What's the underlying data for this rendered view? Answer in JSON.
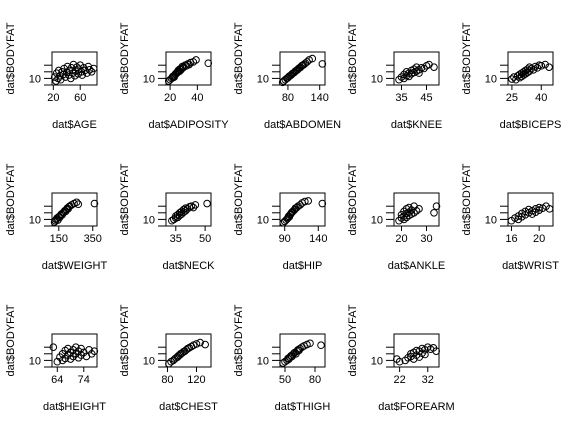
{
  "chart_data": [
    {
      "type": "scatter",
      "xlabel": "dat$AGE",
      "ylabel": "dat$BODYFAT",
      "xticks": [
        20,
        60
      ],
      "xlim": [
        18,
        85
      ],
      "yticks": [
        10
      ],
      "ylim": [
        0,
        50
      ],
      "points": [
        [
          22,
          12
        ],
        [
          24,
          6
        ],
        [
          25,
          18
        ],
        [
          27,
          10
        ],
        [
          28,
          22
        ],
        [
          30,
          14
        ],
        [
          31,
          8
        ],
        [
          33,
          20
        ],
        [
          35,
          16
        ],
        [
          36,
          25
        ],
        [
          38,
          12
        ],
        [
          40,
          19
        ],
        [
          41,
          28
        ],
        [
          43,
          15
        ],
        [
          44,
          22
        ],
        [
          46,
          10
        ],
        [
          47,
          26
        ],
        [
          49,
          18
        ],
        [
          50,
          31
        ],
        [
          52,
          14
        ],
        [
          53,
          21
        ],
        [
          55,
          27
        ],
        [
          57,
          17
        ],
        [
          58,
          24
        ],
        [
          60,
          30
        ],
        [
          62,
          20
        ],
        [
          63,
          15
        ],
        [
          65,
          26
        ],
        [
          67,
          22
        ],
        [
          70,
          18
        ],
        [
          72,
          28
        ],
        [
          74,
          23
        ],
        [
          77,
          20
        ],
        [
          80,
          25
        ]
      ]
    },
    {
      "type": "scatter",
      "xlabel": "dat$ADIPOSITY",
      "ylabel": "dat$BODYFAT",
      "xticks": [
        20,
        40
      ],
      "xlim": [
        17,
        50
      ],
      "yticks": [
        10
      ],
      "ylim": [
        0,
        50
      ],
      "points": [
        [
          19,
          6
        ],
        [
          20,
          8
        ],
        [
          21,
          10
        ],
        [
          22,
          11
        ],
        [
          22,
          13
        ],
        [
          23,
          14
        ],
        [
          23,
          12
        ],
        [
          24,
          16
        ],
        [
          24,
          17
        ],
        [
          25,
          18
        ],
        [
          25,
          19
        ],
        [
          26,
          20
        ],
        [
          26,
          22
        ],
        [
          27,
          21
        ],
        [
          27,
          24
        ],
        [
          28,
          23
        ],
        [
          28,
          25
        ],
        [
          29,
          26
        ],
        [
          29,
          28
        ],
        [
          30,
          27
        ],
        [
          31,
          30
        ],
        [
          32,
          29
        ],
        [
          33,
          32
        ],
        [
          34,
          31
        ],
        [
          35,
          34
        ],
        [
          37,
          35
        ],
        [
          39,
          38
        ],
        [
          48,
          33
        ]
      ]
    },
    {
      "type": "scatter",
      "xlabel": "dat$ABDOMEN",
      "ylabel": "dat$BODYFAT",
      "xticks": [
        80,
        140
      ],
      "xlim": [
        65,
        150
      ],
      "yticks": [
        10
      ],
      "ylim": [
        0,
        50
      ],
      "points": [
        [
          70,
          4
        ],
        [
          72,
          6
        ],
        [
          75,
          8
        ],
        [
          78,
          10
        ],
        [
          80,
          11
        ],
        [
          82,
          13
        ],
        [
          84,
          14
        ],
        [
          86,
          15
        ],
        [
          88,
          17
        ],
        [
          90,
          18
        ],
        [
          92,
          19
        ],
        [
          94,
          21
        ],
        [
          96,
          22
        ],
        [
          98,
          23
        ],
        [
          100,
          25
        ],
        [
          102,
          26
        ],
        [
          104,
          27
        ],
        [
          106,
          29
        ],
        [
          108,
          30
        ],
        [
          110,
          31
        ],
        [
          113,
          33
        ],
        [
          116,
          35
        ],
        [
          120,
          38
        ],
        [
          126,
          40
        ],
        [
          145,
          32
        ]
      ]
    },
    {
      "type": "scatter",
      "xlabel": "dat$KNEE",
      "ylabel": "dat$BODYFAT",
      "xticks": [
        35,
        45
      ],
      "xlim": [
        32,
        50
      ],
      "yticks": [
        10
      ],
      "ylim": [
        0,
        50
      ],
      "points": [
        [
          34,
          8
        ],
        [
          35,
          12
        ],
        [
          36,
          10
        ],
        [
          36,
          16
        ],
        [
          37,
          14
        ],
        [
          37,
          20
        ],
        [
          38,
          18
        ],
        [
          38,
          13
        ],
        [
          39,
          22
        ],
        [
          39,
          17
        ],
        [
          40,
          24
        ],
        [
          40,
          19
        ],
        [
          41,
          21
        ],
        [
          41,
          27
        ],
        [
          42,
          23
        ],
        [
          42,
          18
        ],
        [
          43,
          26
        ],
        [
          44,
          25
        ],
        [
          45,
          29
        ],
        [
          46,
          31
        ],
        [
          48,
          27
        ]
      ]
    },
    {
      "type": "scatter",
      "xlabel": "dat$BICEPS",
      "ylabel": "dat$BODYFAT",
      "xticks": [
        25,
        40
      ],
      "xlim": [
        23,
        46
      ],
      "yticks": [
        10
      ],
      "ylim": [
        0,
        50
      ],
      "points": [
        [
          25,
          9
        ],
        [
          26,
          12
        ],
        [
          27,
          8
        ],
        [
          28,
          14
        ],
        [
          29,
          16
        ],
        [
          29,
          11
        ],
        [
          30,
          18
        ],
        [
          30,
          13
        ],
        [
          31,
          20
        ],
        [
          31,
          15
        ],
        [
          32,
          22
        ],
        [
          32,
          17
        ],
        [
          33,
          24
        ],
        [
          33,
          19
        ],
        [
          34,
          21
        ],
        [
          34,
          27
        ],
        [
          35,
          25
        ],
        [
          36,
          23
        ],
        [
          37,
          28
        ],
        [
          38,
          26
        ],
        [
          39,
          30
        ],
        [
          40,
          29
        ],
        [
          42,
          31
        ],
        [
          44,
          27
        ]
      ]
    },
    {
      "type": "scatter",
      "xlabel": "dat$WEIGHT",
      "ylabel": "dat$BODYFAT",
      "xticks": [
        150,
        350
      ],
      "xlim": [
        110,
        375
      ],
      "yticks": [
        10
      ],
      "ylim": [
        0,
        50
      ],
      "points": [
        [
          125,
          6
        ],
        [
          130,
          8
        ],
        [
          135,
          10
        ],
        [
          140,
          12
        ],
        [
          145,
          9
        ],
        [
          150,
          14
        ],
        [
          155,
          13
        ],
        [
          160,
          16
        ],
        [
          165,
          18
        ],
        [
          170,
          17
        ],
        [
          175,
          20
        ],
        [
          180,
          21
        ],
        [
          185,
          23
        ],
        [
          190,
          22
        ],
        [
          195,
          25
        ],
        [
          200,
          27
        ],
        [
          205,
          26
        ],
        [
          210,
          29
        ],
        [
          215,
          30
        ],
        [
          225,
          32
        ],
        [
          240,
          34
        ],
        [
          255,
          36
        ],
        [
          265,
          33
        ],
        [
          360,
          34
        ]
      ]
    },
    {
      "type": "scatter",
      "xlabel": "dat$NECK",
      "ylabel": "dat$BODYFAT",
      "xticks": [
        35,
        50
      ],
      "xlim": [
        30,
        53
      ],
      "yticks": [
        10
      ],
      "ylim": [
        0,
        50
      ],
      "points": [
        [
          33,
          8
        ],
        [
          34,
          10
        ],
        [
          35,
          12
        ],
        [
          35,
          15
        ],
        [
          36,
          13
        ],
        [
          36,
          17
        ],
        [
          37,
          16
        ],
        [
          37,
          20
        ],
        [
          38,
          18
        ],
        [
          38,
          22
        ],
        [
          39,
          21
        ],
        [
          39,
          25
        ],
        [
          40,
          23
        ],
        [
          40,
          27
        ],
        [
          41,
          26
        ],
        [
          42,
          29
        ],
        [
          43,
          30
        ],
        [
          44,
          28
        ],
        [
          45,
          32
        ],
        [
          51,
          34
        ]
      ]
    },
    {
      "type": "scatter",
      "xlabel": "dat$HIP",
      "ylabel": "dat$BODYFAT",
      "xticks": [
        90,
        140
      ],
      "xlim": [
        83,
        150
      ],
      "yticks": [
        10
      ],
      "ylim": [
        0,
        50
      ],
      "points": [
        [
          88,
          5
        ],
        [
          90,
          7
        ],
        [
          92,
          9
        ],
        [
          94,
          11
        ],
        [
          95,
          13
        ],
        [
          96,
          15
        ],
        [
          97,
          14
        ],
        [
          98,
          17
        ],
        [
          99,
          18
        ],
        [
          100,
          20
        ],
        [
          101,
          21
        ],
        [
          102,
          22
        ],
        [
          104,
          24
        ],
        [
          105,
          25
        ],
        [
          106,
          27
        ],
        [
          108,
          28
        ],
        [
          110,
          30
        ],
        [
          113,
          32
        ],
        [
          116,
          35
        ],
        [
          120,
          37
        ],
        [
          125,
          38
        ],
        [
          146,
          34
        ]
      ]
    },
    {
      "type": "scatter",
      "xlabel": "dat$ANKLE",
      "ylabel": "dat$BODYFAT",
      "xticks": [
        20,
        30
      ],
      "xlim": [
        17,
        35
      ],
      "yticks": [
        10
      ],
      "ylim": [
        0,
        50
      ],
      "points": [
        [
          19,
          8
        ],
        [
          20,
          12
        ],
        [
          20,
          17
        ],
        [
          21,
          10
        ],
        [
          21,
          15
        ],
        [
          21,
          22
        ],
        [
          22,
          13
        ],
        [
          22,
          19
        ],
        [
          22,
          26
        ],
        [
          23,
          16
        ],
        [
          23,
          21
        ],
        [
          23,
          28
        ],
        [
          24,
          18
        ],
        [
          24,
          24
        ],
        [
          25,
          20
        ],
        [
          25,
          30
        ],
        [
          26,
          23
        ],
        [
          27,
          26
        ],
        [
          33,
          20
        ],
        [
          34,
          30
        ]
      ]
    },
    {
      "type": "scatter",
      "xlabel": "dat$WRIST",
      "ylabel": "dat$BODYFAT",
      "xticks": [
        16,
        20
      ],
      "xlim": [
        15.5,
        22
      ],
      "yticks": [
        10
      ],
      "ylim": [
        0,
        50
      ],
      "points": [
        [
          16,
          8
        ],
        [
          16.5,
          12
        ],
        [
          17,
          10
        ],
        [
          17,
          15
        ],
        [
          17.5,
          14
        ],
        [
          17.5,
          19
        ],
        [
          18,
          17
        ],
        [
          18,
          22
        ],
        [
          18.5,
          20
        ],
        [
          18.5,
          25
        ],
        [
          19,
          23
        ],
        [
          19,
          18
        ],
        [
          19.5,
          26
        ],
        [
          19.5,
          21
        ],
        [
          20,
          28
        ],
        [
          20,
          24
        ],
        [
          20.5,
          27
        ],
        [
          21,
          30
        ],
        [
          21.5,
          26
        ]
      ]
    },
    {
      "type": "scatter",
      "xlabel": "dat$HEIGHT",
      "ylabel": "dat$BODYFAT",
      "xticks": [
        64,
        74
      ],
      "xlim": [
        62,
        79
      ],
      "yticks": [
        10
      ],
      "ylim": [
        0,
        50
      ],
      "points": [
        [
          64,
          8
        ],
        [
          65,
          15
        ],
        [
          66,
          20
        ],
        [
          66,
          10
        ],
        [
          67,
          25
        ],
        [
          67,
          13
        ],
        [
          68,
          18
        ],
        [
          68,
          28
        ],
        [
          69,
          12
        ],
        [
          69,
          22
        ],
        [
          70,
          16
        ],
        [
          70,
          26
        ],
        [
          71,
          20
        ],
        [
          71,
          30
        ],
        [
          72,
          14
        ],
        [
          72,
          24
        ],
        [
          73,
          18
        ],
        [
          73,
          28
        ],
        [
          74,
          22
        ],
        [
          75,
          16
        ],
        [
          76,
          26
        ],
        [
          77,
          20
        ],
        [
          78,
          24
        ],
        [
          62.5,
          30
        ]
      ]
    },
    {
      "type": "scatter",
      "xlabel": "dat$CHEST",
      "ylabel": "dat$BODYFAT",
      "xticks": [
        80,
        120
      ],
      "xlim": [
        78,
        140
      ],
      "yticks": [
        10
      ],
      "ylim": [
        0,
        50
      ],
      "points": [
        [
          82,
          5
        ],
        [
          85,
          8
        ],
        [
          88,
          10
        ],
        [
          90,
          12
        ],
        [
          92,
          14
        ],
        [
          94,
          15
        ],
        [
          95,
          17
        ],
        [
          97,
          18
        ],
        [
          98,
          20
        ],
        [
          100,
          21
        ],
        [
          102,
          23
        ],
        [
          104,
          24
        ],
        [
          106,
          26
        ],
        [
          108,
          28
        ],
        [
          110,
          29
        ],
        [
          113,
          31
        ],
        [
          116,
          33
        ],
        [
          120,
          35
        ],
        [
          125,
          37
        ],
        [
          132,
          34
        ]
      ]
    },
    {
      "type": "scatter",
      "xlabel": "dat$THIGH",
      "ylabel": "dat$BODYFAT",
      "xticks": [
        50,
        80
      ],
      "xlim": [
        45,
        90
      ],
      "yticks": [
        10
      ],
      "ylim": [
        0,
        50
      ],
      "points": [
        [
          48,
          6
        ],
        [
          50,
          8
        ],
        [
          52,
          10
        ],
        [
          53,
          13
        ],
        [
          54,
          12
        ],
        [
          55,
          15
        ],
        [
          56,
          17
        ],
        [
          57,
          16
        ],
        [
          58,
          19
        ],
        [
          59,
          21
        ],
        [
          60,
          22
        ],
        [
          61,
          20
        ],
        [
          62,
          24
        ],
        [
          63,
          26
        ],
        [
          64,
          25
        ],
        [
          65,
          28
        ],
        [
          67,
          30
        ],
        [
          69,
          32
        ],
        [
          72,
          34
        ],
        [
          75,
          36
        ],
        [
          86,
          33
        ]
      ]
    },
    {
      "type": "scatter",
      "xlabel": "dat$FOREARM",
      "ylabel": "dat$BODYFAT",
      "xticks": [
        22,
        32
      ],
      "xlim": [
        20,
        36
      ],
      "yticks": [
        10
      ],
      "ylim": [
        0,
        50
      ],
      "points": [
        [
          21,
          12
        ],
        [
          22,
          8
        ],
        [
          24,
          10
        ],
        [
          25,
          14
        ],
        [
          26,
          16
        ],
        [
          26,
          20
        ],
        [
          27,
          12
        ],
        [
          27,
          22
        ],
        [
          28,
          18
        ],
        [
          28,
          25
        ],
        [
          29,
          15
        ],
        [
          29,
          24
        ],
        [
          30,
          21
        ],
        [
          30,
          28
        ],
        [
          31,
          26
        ],
        [
          31,
          19
        ],
        [
          32,
          30
        ],
        [
          33,
          27
        ],
        [
          34,
          29
        ],
        [
          35,
          24
        ]
      ]
    }
  ]
}
